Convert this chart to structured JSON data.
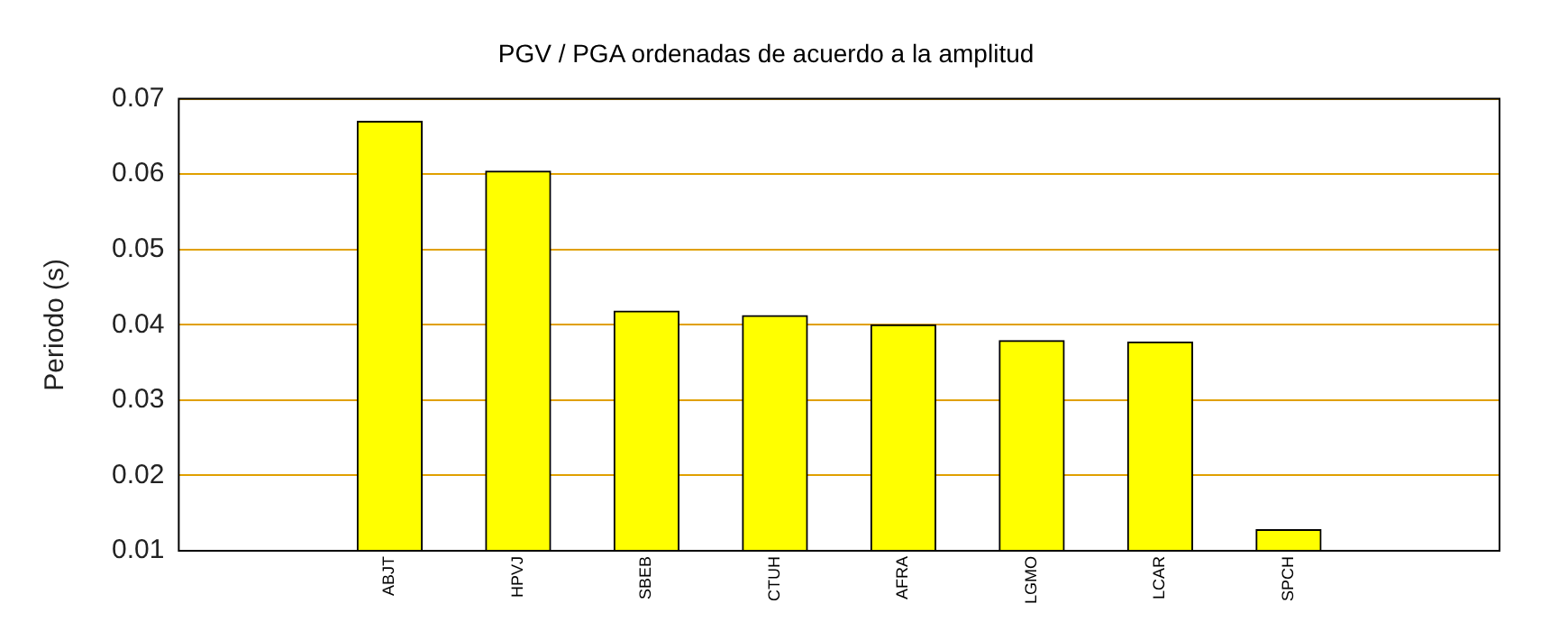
{
  "chart_data": {
    "type": "bar",
    "title": "PGV / PGA ordenadas de acuerdo a la amplitud",
    "ylabel": "Periodo (s)",
    "categories": [
      "ABJT",
      "HPVJ",
      "SBEB",
      "CTUH",
      "AFRA",
      "LGMO",
      "LCAR",
      "SPCH"
    ],
    "values": [
      0.067,
      0.0604,
      0.0418,
      0.0412,
      0.04,
      0.0379,
      0.0377,
      0.0128
    ],
    "color": "#ffff00",
    "ylim": [
      0.01,
      0.07
    ],
    "yticks": [
      0.01,
      0.02,
      0.03,
      0.04,
      0.05,
      0.06,
      0.07
    ],
    "grid": "y",
    "legend": false
  }
}
